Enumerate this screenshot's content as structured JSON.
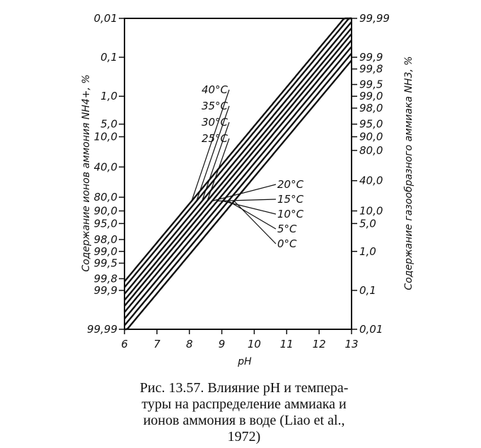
{
  "chart_data": {
    "type": "line",
    "xlabel": "pH",
    "ylabel_left": "Содержание ионов аммония NH4+, %",
    "ylabel_right": "Содержание газообразного аммиака NH3, %",
    "x_ticks": [
      "6",
      "7",
      "8",
      "9",
      "10",
      "11",
      "12",
      "13"
    ],
    "xlim": [
      6,
      13
    ],
    "left_ticks": [
      {
        "label": "0,01",
        "nh3": 99.99
      },
      {
        "label": "0,1",
        "nh3": 99.9
      },
      {
        "label": "1,0",
        "nh3": 99.0
      },
      {
        "label": "5,0",
        "nh3": 95.0
      },
      {
        "label": "10,0",
        "nh3": 90.0
      },
      {
        "label": "40,0",
        "nh3": 60.0
      },
      {
        "label": "80,0",
        "nh3": 20.0
      },
      {
        "label": "90,0",
        "nh3": 10.0
      },
      {
        "label": "95,0",
        "nh3": 5.0
      },
      {
        "label": "98,0",
        "nh3": 2.0
      },
      {
        "label": "99,0",
        "nh3": 1.0
      },
      {
        "label": "99,5",
        "nh3": 0.5
      },
      {
        "label": "99,8",
        "nh3": 0.2
      },
      {
        "label": "99,9",
        "nh3": 0.1
      },
      {
        "label": "99,99",
        "nh3": 0.01
      }
    ],
    "right_ticks": [
      {
        "label": "99,99",
        "nh3": 99.99
      },
      {
        "label": "99,9",
        "nh3": 99.9
      },
      {
        "label": "99,8",
        "nh3": 99.8
      },
      {
        "label": "99,5",
        "nh3": 99.5
      },
      {
        "label": "99,0",
        "nh3": 99.0
      },
      {
        "label": "98,0",
        "nh3": 98.0
      },
      {
        "label": "95,0",
        "nh3": 95.0
      },
      {
        "label": "90,0",
        "nh3": 90.0
      },
      {
        "label": "80,0",
        "nh3": 80.0
      },
      {
        "label": "40,0",
        "nh3": 40.0
      },
      {
        "label": "10,0",
        "nh3": 10.0
      },
      {
        "label": "5,0",
        "nh3": 5.0
      },
      {
        "label": "1,0",
        "nh3": 1.0
      },
      {
        "label": "0,1",
        "nh3": 0.1
      },
      {
        "label": "0,01",
        "nh3": 0.01
      }
    ],
    "series": [
      {
        "name": "40°C",
        "pKa": 8.77
      },
      {
        "name": "35°C",
        "pKa": 8.92
      },
      {
        "name": "30°C",
        "pKa": 9.09
      },
      {
        "name": "25°C",
        "pKa": 9.25
      },
      {
        "name": "20°C",
        "pKa": 9.4
      },
      {
        "name": "15°C",
        "pKa": 9.56
      },
      {
        "name": "10°C",
        "pKa": 9.73
      },
      {
        "name": "5°C",
        "pKa": 9.9
      },
      {
        "name": "0°C",
        "pKa": 10.08
      }
    ]
  },
  "caption": {
    "line1": "Рис. 13.57. Влияние pH и темпера-",
    "line2": "туры на распределение аммиака и",
    "line3": "ионов аммония в воде (Liao et al.,",
    "line4": "1972)"
  }
}
